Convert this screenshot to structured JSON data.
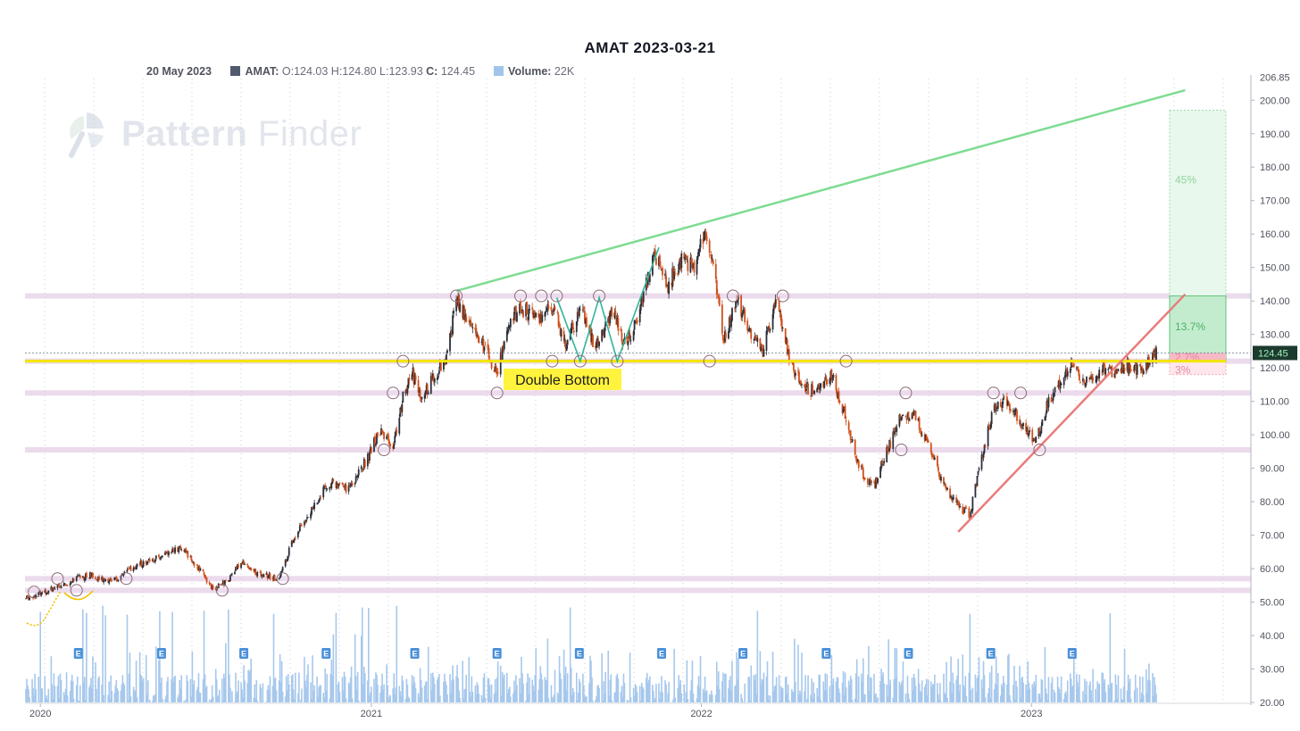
{
  "chart_data": {
    "type": "candlestick",
    "title": "AMAT 2023-03-21",
    "legend": {
      "date": "20 May 2023",
      "symbol_label": "AMAT:",
      "ohlc": "O:124.03 H:124.80 L:123.93",
      "close_label": "C:",
      "close_value": "124.45",
      "volume_label": "Volume:",
      "volume_value": "22K"
    },
    "last_price_label": "124.45",
    "y_axis": {
      "range": [
        20,
        206.85
      ],
      "top_label": "206.85",
      "ticks": [
        "200.00",
        "190.00",
        "180.00",
        "170.00",
        "160.00",
        "150.00",
        "140.00",
        "130.00",
        "120.00",
        "110.00",
        "100.00",
        "90.00",
        "80.00",
        "70.00",
        "60.00",
        "50.00",
        "40.00",
        "30.00",
        "20.00"
      ]
    },
    "x_axis": {
      "labels": [
        "2020",
        "2021",
        "2022",
        "2023"
      ]
    },
    "price_path": [
      [
        "2019-12-15",
        51
      ],
      [
        "2020-01-15",
        54
      ],
      [
        "2020-02-10",
        57
      ],
      [
        "2020-02-25",
        58
      ],
      [
        "2020-03-20",
        56
      ],
      [
        "2020-04-15",
        61
      ],
      [
        "2020-05-10",
        63
      ],
      [
        "2020-06-05",
        66
      ],
      [
        "2020-06-25",
        60
      ],
      [
        "2020-07-10",
        54
      ],
      [
        "2020-07-25",
        56
      ],
      [
        "2020-08-10",
        62
      ],
      [
        "2020-08-25",
        59
      ],
      [
        "2020-09-20",
        57
      ],
      [
        "2020-10-10",
        71
      ],
      [
        "2020-10-25",
        77
      ],
      [
        "2020-11-15",
        86
      ],
      [
        "2020-12-05",
        84
      ],
      [
        "2020-12-20",
        89
      ],
      [
        "2021-01-10",
        101
      ],
      [
        "2021-01-25",
        97
      ],
      [
        "2021-02-05",
        111
      ],
      [
        "2021-02-15",
        119
      ],
      [
        "2021-02-25",
        110
      ],
      [
        "2021-03-10",
        117
      ],
      [
        "2021-03-25",
        123
      ],
      [
        "2021-04-05",
        140
      ],
      [
        "2021-04-20",
        133
      ],
      [
        "2021-05-05",
        126
      ],
      [
        "2021-05-20",
        118
      ],
      [
        "2021-06-01",
        133
      ],
      [
        "2021-06-15",
        138
      ],
      [
        "2021-07-05",
        134
      ],
      [
        "2021-07-20",
        139
      ],
      [
        "2021-08-05",
        126
      ],
      [
        "2021-08-20",
        139
      ],
      [
        "2021-09-05",
        126
      ],
      [
        "2021-09-25",
        137
      ],
      [
        "2021-10-10",
        126
      ],
      [
        "2021-10-25",
        137
      ],
      [
        "2021-11-10",
        154
      ],
      [
        "2021-11-25",
        145
      ],
      [
        "2021-12-10",
        152
      ],
      [
        "2021-12-25",
        150
      ],
      [
        "2022-01-05",
        162
      ],
      [
        "2022-01-15",
        150
      ],
      [
        "2022-01-25",
        128
      ],
      [
        "2022-02-10",
        140
      ],
      [
        "2022-02-25",
        130
      ],
      [
        "2022-03-10",
        125
      ],
      [
        "2022-03-25",
        140
      ],
      [
        "2022-04-10",
        121
      ],
      [
        "2022-04-25",
        114
      ],
      [
        "2022-05-10",
        113
      ],
      [
        "2022-05-25",
        118
      ],
      [
        "2022-06-10",
        105
      ],
      [
        "2022-06-25",
        90
      ],
      [
        "2022-07-10",
        84
      ],
      [
        "2022-07-25",
        95
      ],
      [
        "2022-08-10",
        106
      ],
      [
        "2022-08-25",
        106
      ],
      [
        "2022-09-10",
        96
      ],
      [
        "2022-09-25",
        85
      ],
      [
        "2022-10-10",
        79
      ],
      [
        "2022-10-25",
        76
      ],
      [
        "2022-11-05",
        91
      ],
      [
        "2022-11-20",
        108
      ],
      [
        "2022-12-05",
        110
      ],
      [
        "2022-12-20",
        104
      ],
      [
        "2023-01-05",
        97
      ],
      [
        "2023-01-20",
        110
      ],
      [
        "2023-02-05",
        116
      ],
      [
        "2023-02-15",
        122
      ],
      [
        "2023-02-28",
        115
      ],
      [
        "2023-03-10",
        117
      ],
      [
        "2023-03-21",
        120
      ],
      [
        "2023-04-01",
        118
      ],
      [
        "2023-04-15",
        121
      ],
      [
        "2023-05-01",
        119
      ],
      [
        "2023-05-20",
        124.45
      ]
    ],
    "volume_axis_max": 49,
    "earnings_markers": [
      "2020-02-12",
      "2020-05-14",
      "2020-08-13",
      "2020-11-12",
      "2021-02-18",
      "2021-05-20",
      "2021-08-19",
      "2021-11-18",
      "2022-02-16",
      "2022-05-19",
      "2022-08-18",
      "2022-11-17",
      "2023-02-15"
    ],
    "earnings_label": "E",
    "support_resistance_levels": [
      141.5,
      122,
      112.5,
      95.5,
      57,
      53.5
    ],
    "key_level": 122,
    "upper_trendline": [
      [
        "2021-04-05",
        143
      ],
      [
        "2023-06-20",
        203
      ]
    ],
    "lower_trendline": [
      [
        "2022-10-12",
        71
      ],
      [
        "2023-06-20",
        142
      ]
    ],
    "pattern": {
      "name": "Double Bottom",
      "points": [
        [
          "2021-07-25",
          141
        ],
        [
          "2021-08-20",
          122
        ],
        [
          "2021-09-10",
          141
        ],
        [
          "2021-09-30",
          122
        ],
        [
          "2021-11-15",
          156
        ]
      ]
    },
    "targets": {
      "top": 197,
      "mid": 141.5,
      "base": 122,
      "stop_top": 124.45,
      "stop_bottom": 118,
      "labels": [
        "45%",
        "13.7%",
        "2.7%",
        "3%"
      ]
    },
    "pivot_points": [
      [
        "2019-12-25",
        53
      ],
      [
        "2020-01-20",
        57
      ],
      [
        "2020-02-10",
        53.5
      ],
      [
        "2020-04-05",
        57
      ],
      [
        "2020-07-20",
        53.5
      ],
      [
        "2020-09-25",
        57
      ],
      [
        "2021-01-15",
        95.5
      ],
      [
        "2021-01-25",
        112.5
      ],
      [
        "2021-02-05",
        122
      ],
      [
        "2021-04-05",
        141.5
      ],
      [
        "2021-05-20",
        112.5
      ],
      [
        "2021-06-15",
        141.5
      ],
      [
        "2021-07-08",
        141.5
      ],
      [
        "2021-07-25",
        141.5
      ],
      [
        "2021-07-20",
        122
      ],
      [
        "2021-08-20",
        122
      ],
      [
        "2021-09-10",
        141.5
      ],
      [
        "2021-09-30",
        122
      ],
      [
        "2022-01-10",
        122
      ],
      [
        "2022-02-05",
        141.5
      ],
      [
        "2022-04-01",
        141.5
      ],
      [
        "2022-06-10",
        122
      ],
      [
        "2022-08-15",
        112.5
      ],
      [
        "2022-08-10",
        95.5
      ],
      [
        "2022-11-20",
        112.5
      ],
      [
        "2022-12-20",
        112.5
      ],
      [
        "2023-01-10",
        95.5
      ]
    ]
  }
}
